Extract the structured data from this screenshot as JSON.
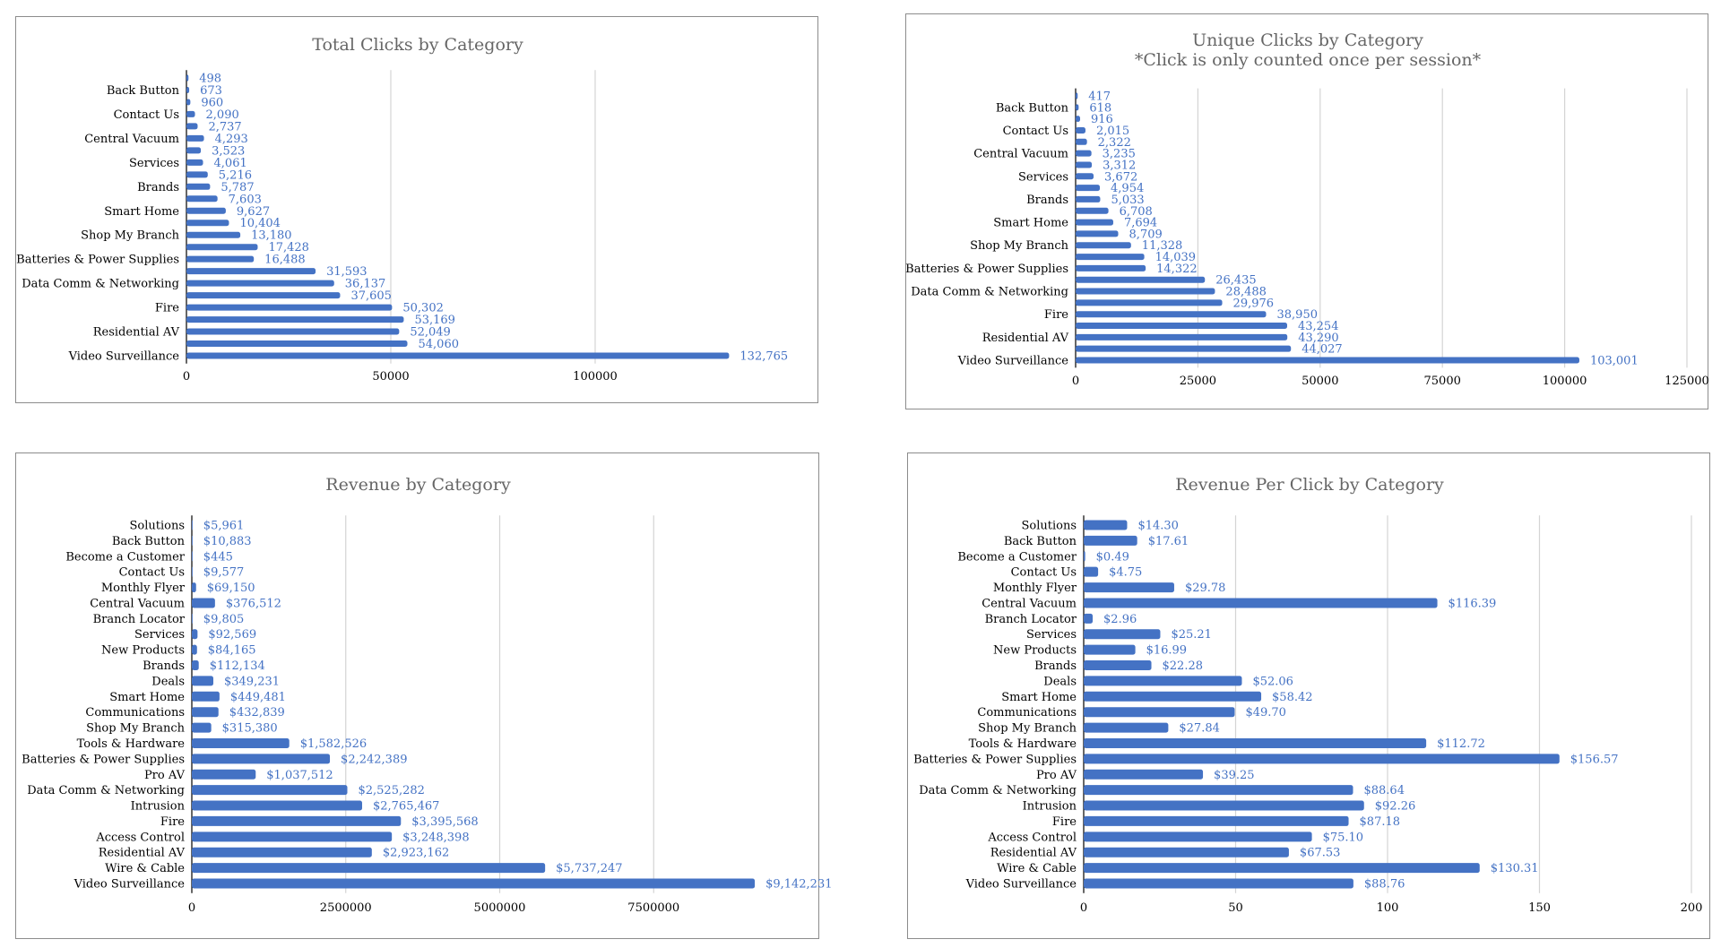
{
  "chart_data": [
    {
      "id": "total-clicks",
      "type": "bar",
      "orientation": "horizontal",
      "title": "Total Clicks by Category",
      "subtitle": "",
      "xlim": [
        0,
        150000
      ],
      "xticks": [
        0,
        50000,
        100000
      ],
      "grid": true,
      "categories": [
        "",
        "Back Button",
        "",
        "Contact Us",
        "",
        "Central Vacuum",
        "",
        "Services",
        "",
        "Brands",
        "",
        "Smart Home",
        "",
        "Shop My Branch",
        "",
        "Batteries & Power Supplies",
        "",
        "Data Comm & Networking",
        "",
        "Fire",
        "",
        "Residential AV",
        "",
        "Video Surveillance"
      ],
      "values": [
        498,
        673,
        960,
        2090,
        2737,
        4293,
        3523,
        4061,
        5216,
        5787,
        7603,
        9627,
        10404,
        13180,
        17428,
        16488,
        31593,
        36137,
        37605,
        50302,
        53169,
        52049,
        54060,
        132765
      ],
      "data_labels": [
        "498",
        "673",
        "960",
        "2,090",
        "2,737",
        "4,293",
        "3,523",
        "4,061",
        "5,216",
        "5,787",
        "7,603",
        "9,627",
        "10,404",
        "13,180",
        "17,428",
        "16,488",
        "31,593",
        "36,137",
        "37,605",
        "50,302",
        "53,169",
        "52,049",
        "54,060",
        "132,765"
      ]
    },
    {
      "id": "unique-clicks",
      "type": "bar",
      "orientation": "horizontal",
      "title": "Unique Clicks by Category",
      "subtitle": "*Click is only counted once per session*",
      "xlim": [
        0,
        125000
      ],
      "xticks": [
        0,
        25000,
        50000,
        75000,
        100000,
        125000
      ],
      "grid": true,
      "categories": [
        "",
        "Back Button",
        "",
        "Contact Us",
        "",
        "Central Vacuum",
        "",
        "Services",
        "",
        "Brands",
        "",
        "Smart Home",
        "",
        "Shop My Branch",
        "",
        "Batteries & Power Supplies",
        "",
        "Data Comm & Networking",
        "",
        "Fire",
        "",
        "Residential AV",
        "",
        "Video Surveillance"
      ],
      "values": [
        417,
        618,
        916,
        2015,
        2322,
        3235,
        3312,
        3672,
        4954,
        5033,
        6708,
        7694,
        8709,
        11328,
        14039,
        14322,
        26435,
        28488,
        29976,
        38950,
        43254,
        43290,
        44027,
        103001
      ],
      "data_labels": [
        "417",
        "618",
        "916",
        "2,015",
        "2,322",
        "3,235",
        "3,312",
        "3,672",
        "4,954",
        "5,033",
        "6,708",
        "7,694",
        "8,709",
        "11,328",
        "14,039",
        "14,322",
        "26,435",
        "28,488",
        "29,976",
        "38,950",
        "43,254",
        "43,290",
        "44,027",
        "103,001"
      ]
    },
    {
      "id": "revenue",
      "type": "bar",
      "orientation": "horizontal",
      "title": "Revenue by Category",
      "subtitle": "",
      "xlim": [
        0,
        10000000
      ],
      "xticks": [
        0,
        2500000,
        5000000,
        7500000
      ],
      "grid": true,
      "categories": [
        "Solutions",
        "Back Button",
        "Become a Customer",
        "Contact Us",
        "Monthly Flyer",
        "Central Vacuum",
        "Branch Locator",
        "Services",
        "New Products",
        "Brands",
        "Deals",
        "Smart Home",
        "Communications",
        "Shop My Branch",
        "Tools & Hardware",
        "Batteries & Power Supplies",
        "Pro AV",
        "Data Comm & Networking",
        "Intrusion",
        "Fire",
        "Access Control",
        "Residential AV",
        "Wire & Cable",
        "Video Surveillance"
      ],
      "values": [
        5961,
        10883,
        445,
        9577,
        69150,
        376512,
        9805,
        92569,
        84165,
        112134,
        349231,
        449481,
        432839,
        315380,
        1582526,
        2242389,
        1037512,
        2525282,
        2765467,
        3395568,
        3248398,
        2923162,
        5737247,
        9142231
      ],
      "data_labels": [
        "$5,961",
        "$10,883",
        "$445",
        "$9,577",
        "$69,150",
        "$376,512",
        "$9,805",
        "$92,569",
        "$84,165",
        "$112,134",
        "$349,231",
        "$449,481",
        "$432,839",
        "$315,380",
        "$1,582,526",
        "$2,242,389",
        "$1,037,512",
        "$2,525,282",
        "$2,765,467",
        "$3,395,568",
        "$3,248,398",
        "$2,923,162",
        "$5,737,247",
        "$9,142,231"
      ]
    },
    {
      "id": "revenue-per-click",
      "type": "bar",
      "orientation": "horizontal",
      "title": "Revenue Per Click by Category",
      "subtitle": "",
      "xlim": [
        0,
        200
      ],
      "xticks": [
        0,
        50,
        100,
        150,
        200
      ],
      "grid": true,
      "categories": [
        "Solutions",
        "Back Button",
        "Become a Customer",
        "Contact Us",
        "Monthly Flyer",
        "Central Vacuum",
        "Branch Locator",
        "Services",
        "New Products",
        "Brands",
        "Deals",
        "Smart Home",
        "Communications",
        "Shop My Branch",
        "Tools & Hardware",
        "Batteries & Power Supplies",
        "Pro AV",
        "Data Comm & Networking",
        "Intrusion",
        "Fire",
        "Access Control",
        "Residential AV",
        "Wire & Cable",
        "Video Surveillance"
      ],
      "values": [
        14.3,
        17.61,
        0.49,
        4.75,
        29.78,
        116.39,
        2.96,
        25.21,
        16.99,
        22.28,
        52.06,
        58.42,
        49.7,
        27.84,
        112.72,
        156.57,
        39.25,
        88.64,
        92.26,
        87.18,
        75.1,
        67.53,
        130.31,
        88.76
      ],
      "data_labels": [
        "$14.30",
        "$17.61",
        "$0.49",
        "$4.75",
        "$29.78",
        "$116.39",
        "$2.96",
        "$25.21",
        "$16.99",
        "$22.28",
        "$52.06",
        "$58.42",
        "$49.70",
        "$27.84",
        "$112.72",
        "$156.57",
        "$39.25",
        "$88.64",
        "$92.26",
        "$87.18",
        "$75.10",
        "$67.53",
        "$130.31",
        "$88.76"
      ]
    }
  ],
  "colors": {
    "bar": "#4472c4",
    "label": "#4472c4",
    "title": "#666666",
    "grid": "#d4d4d4",
    "border": "#8c8c8c"
  }
}
